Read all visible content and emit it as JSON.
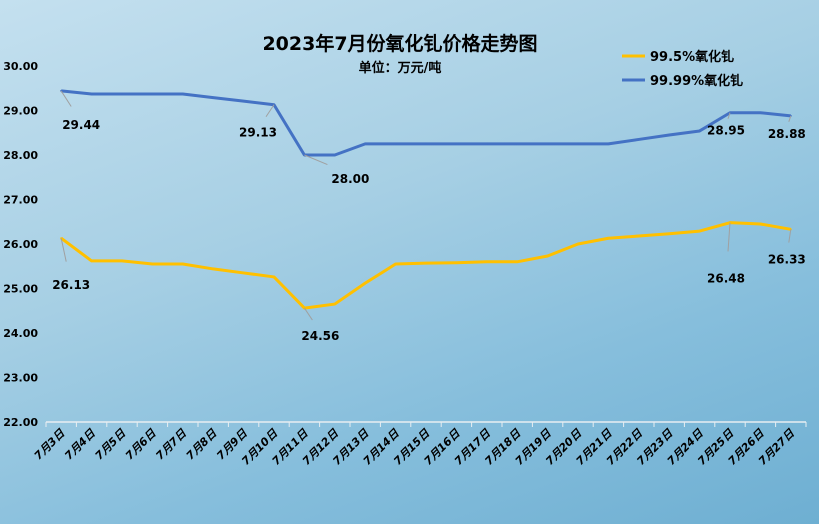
{
  "chart_data": {
    "type": "line",
    "title": "2023年7月份氧化钆价格走势图",
    "subtitle": "单位：万元/吨",
    "xlabel": "",
    "ylabel": "",
    "ylim": [
      22,
      30
    ],
    "yticks": [
      "22.00",
      "23.00",
      "24.00",
      "25.00",
      "26.00",
      "27.00",
      "28.00",
      "29.00",
      "30.00"
    ],
    "grid": false,
    "legend_position": "top-right",
    "categories": [
      "7月3日",
      "7月4日",
      "7月5日",
      "7月6日",
      "7月7日",
      "7月8日",
      "7月9日",
      "7月10日",
      "7月11日",
      "7月12日",
      "7月13日",
      "7月14日",
      "7月15日",
      "7月16日",
      "7月17日",
      "7月18日",
      "7月19日",
      "7月20日",
      "7月21日",
      "7月22日",
      "7月23日",
      "7月24日",
      "7月25日",
      "7月26日",
      "7月27日"
    ],
    "series": [
      {
        "name": "99.5%氧化钆",
        "color": "#FFC000",
        "values": [
          26.13,
          25.62,
          25.62,
          25.55,
          25.55,
          25.44,
          25.35,
          25.26,
          24.56,
          24.65,
          25.12,
          25.55,
          25.57,
          25.58,
          25.6,
          25.6,
          25.73,
          26.0,
          26.13,
          26.18,
          26.23,
          26.29,
          26.48,
          26.45,
          26.33
        ],
        "labels": [
          {
            "index": 0,
            "text": "26.13"
          },
          {
            "index": 8,
            "text": "24.56"
          },
          {
            "index": 22,
            "text": "26.48"
          },
          {
            "index": 24,
            "text": "26.33"
          }
        ]
      },
      {
        "name": "99.99%氧化钆",
        "color": "#4472C4",
        "values": [
          29.44,
          29.37,
          29.37,
          29.37,
          29.37,
          29.29,
          29.21,
          29.13,
          28.0,
          28.0,
          28.25,
          28.25,
          28.25,
          28.25,
          28.25,
          28.25,
          28.25,
          28.25,
          28.25,
          28.35,
          28.45,
          28.54,
          28.95,
          28.95,
          28.88
        ],
        "labels": [
          {
            "index": 0,
            "text": "29.44"
          },
          {
            "index": 7,
            "text": "29.13"
          },
          {
            "index": 8,
            "text": "28.00"
          },
          {
            "index": 22,
            "text": "28.95"
          },
          {
            "index": 24,
            "text": "28.88"
          }
        ]
      }
    ]
  }
}
